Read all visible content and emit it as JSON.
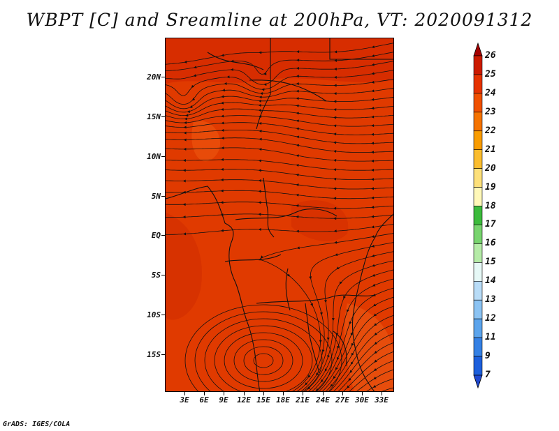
{
  "title": "WBPT [C] and Sreamline at 200hPa, VT: 2020091312",
  "footer": "GrADS: IGES/COLA",
  "lat_labels": [
    "20N",
    "15N",
    "10N",
    "5N",
    "EQ",
    "5S",
    "10S",
    "15S"
  ],
  "lon_labels": [
    "3E",
    "6E",
    "9E",
    "12E",
    "15E",
    "18E",
    "21E",
    "24E",
    "27E",
    "30E",
    "33E"
  ],
  "colorbar": {
    "labels": [
      "26",
      "25",
      "24",
      "23",
      "22",
      "21",
      "20",
      "19",
      "18",
      "17",
      "16",
      "15",
      "14",
      "13",
      "12",
      "11",
      "9",
      "7"
    ],
    "colors": [
      "#a50000",
      "#cc1a00",
      "#e63200",
      "#f05000",
      "#f57300",
      "#f99c00",
      "#fbbd2e",
      "#fde07a",
      "#fff8b8",
      "#3cbb3c",
      "#78d46e",
      "#b5eba7",
      "#e6f8f6",
      "#b8dcf7",
      "#8bc3f3",
      "#5ba4ec",
      "#3480e4",
      "#1c5fdc",
      "#1f48cf"
    ]
  },
  "map": {
    "field_color": "#e03a00",
    "vortex_center": "15E, 15S"
  }
}
